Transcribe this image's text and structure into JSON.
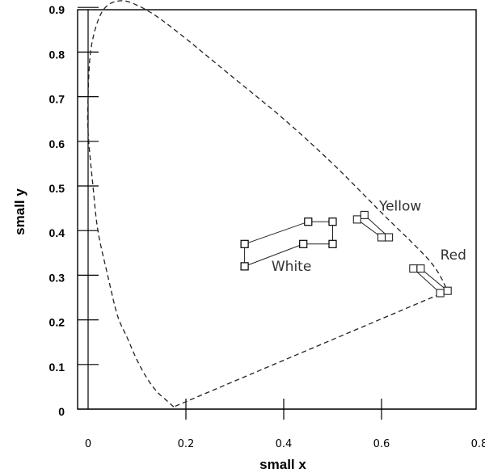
{
  "chart_data": {
    "type": "scatter",
    "title": "",
    "xlabel": "small x",
    "ylabel": "small y",
    "xlim": [
      0,
      0.8
    ],
    "ylim": [
      0,
      0.9
    ],
    "x_ticks": [
      {
        "value": 0,
        "label": "0"
      },
      {
        "value": 0.2,
        "label": "0.2"
      },
      {
        "value": 0.4,
        "label": "0.4"
      },
      {
        "value": 0.6,
        "label": "0.6"
      },
      {
        "value": 0.8,
        "label": "0.8"
      }
    ],
    "y_ticks": [
      {
        "value": 0,
        "label": "0"
      },
      {
        "value": 0.1,
        "label": "0.1"
      },
      {
        "value": 0.2,
        "label": "0.2"
      },
      {
        "value": 0.3,
        "label": "0.3"
      },
      {
        "value": 0.4,
        "label": "0.4"
      },
      {
        "value": 0.5,
        "label": "0.5"
      },
      {
        "value": 0.6,
        "label": "0.6"
      },
      {
        "value": 0.7,
        "label": "0.7"
      },
      {
        "value": 0.8,
        "label": "0.8"
      },
      {
        "value": 0.9,
        "label": "0.9"
      }
    ],
    "grid": false,
    "legend": "none",
    "spectral_locus": {
      "style": "dashed",
      "points": [
        [
          0.175,
          0.005
        ],
        [
          0.16,
          0.02
        ],
        [
          0.14,
          0.04
        ],
        [
          0.12,
          0.07
        ],
        [
          0.1,
          0.11
        ],
        [
          0.08,
          0.16
        ],
        [
          0.06,
          0.21
        ],
        [
          0.04,
          0.3
        ],
        [
          0.02,
          0.4
        ],
        [
          0.01,
          0.5
        ],
        [
          0.0,
          0.62
        ],
        [
          0.0,
          0.7
        ],
        [
          0.005,
          0.8
        ],
        [
          0.02,
          0.87
        ],
        [
          0.04,
          0.905
        ],
        [
          0.07,
          0.915
        ],
        [
          0.1,
          0.905
        ],
        [
          0.14,
          0.88
        ],
        [
          0.2,
          0.83
        ],
        [
          0.3,
          0.74
        ],
        [
          0.4,
          0.65
        ],
        [
          0.5,
          0.55
        ],
        [
          0.6,
          0.44
        ],
        [
          0.7,
          0.33
        ],
        [
          0.735,
          0.265
        ]
      ]
    },
    "purple_line": {
      "style": "dashed",
      "points": [
        [
          0.735,
          0.265
        ],
        [
          0.175,
          0.005
        ]
      ]
    },
    "series": [
      {
        "name": "White",
        "points": [
          [
            0.32,
            0.32
          ],
          [
            0.32,
            0.37
          ],
          [
            0.45,
            0.42
          ],
          [
            0.5,
            0.42
          ],
          [
            0.5,
            0.37
          ],
          [
            0.44,
            0.37
          ],
          [
            0.32,
            0.32
          ]
        ]
      },
      {
        "name": "Yellow",
        "points": [
          [
            0.565,
            0.435
          ],
          [
            0.55,
            0.425
          ],
          [
            0.6,
            0.385
          ],
          [
            0.615,
            0.385
          ],
          [
            0.565,
            0.435
          ]
        ]
      },
      {
        "name": "Red",
        "points": [
          [
            0.665,
            0.315
          ],
          [
            0.68,
            0.315
          ],
          [
            0.735,
            0.265
          ],
          [
            0.72,
            0.26
          ],
          [
            0.665,
            0.315
          ]
        ]
      }
    ],
    "annotations": [
      {
        "text": "White",
        "x": 0.375,
        "y": 0.31
      },
      {
        "text": "Yellow",
        "x": 0.595,
        "y": 0.445
      },
      {
        "text": "Red",
        "x": 0.72,
        "y": 0.335
      }
    ]
  }
}
